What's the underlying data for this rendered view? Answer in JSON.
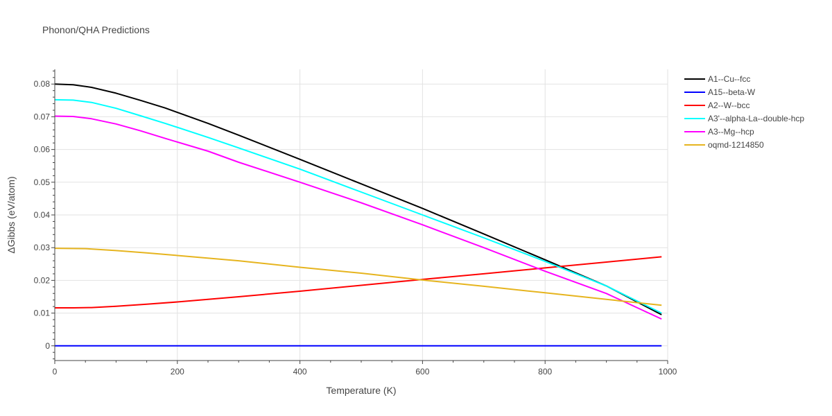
{
  "chart_data": {
    "type": "line",
    "title": "Phonon/QHA Predictions",
    "xlabel": "Temperature (K)",
    "ylabel": "ΔGibbs (eV/atom)",
    "xlim": [
      0,
      1000
    ],
    "ylim": [
      -0.0045,
      0.0845
    ],
    "x_ticks": [
      0,
      200,
      400,
      600,
      800,
      1000
    ],
    "x_tick_labels": [
      "0",
      "200",
      "400",
      "600",
      "800",
      "1000"
    ],
    "y_ticks": [
      0,
      0.01,
      0.02,
      0.03,
      0.04,
      0.05,
      0.06,
      0.07,
      0.08
    ],
    "y_tick_labels": [
      "0",
      "0.01",
      "0.02",
      "0.03",
      "0.04",
      "0.05",
      "0.06",
      "0.07",
      "0.08"
    ],
    "grid": true,
    "legend_position": "top-right outside",
    "series": [
      {
        "name": "A1--Cu--fcc",
        "color": "#000000",
        "x": [
          0,
          30,
          60,
          100,
          140,
          180,
          250,
          300,
          400,
          500,
          600,
          700,
          800,
          900,
          990
        ],
        "y": [
          0.08,
          0.0798,
          0.079,
          0.0772,
          0.075,
          0.0727,
          0.068,
          0.0644,
          0.057,
          0.0495,
          0.042,
          0.0342,
          0.0263,
          0.0183,
          0.0095
        ]
      },
      {
        "name": "A15--beta-W",
        "color": "#0000ff",
        "x": [
          0,
          990
        ],
        "y": [
          0.0,
          0.0
        ]
      },
      {
        "name": "A2--W--bcc",
        "color": "#ff0000",
        "x": [
          0,
          30,
          60,
          100,
          150,
          200,
          300,
          400,
          500,
          600,
          700,
          800,
          900,
          990
        ],
        "y": [
          0.0116,
          0.0116,
          0.0117,
          0.0121,
          0.0127,
          0.0134,
          0.015,
          0.0167,
          0.0185,
          0.0203,
          0.022,
          0.0238,
          0.0256,
          0.0272
        ]
      },
      {
        "name": "A3'--alpha-La--double-hcp",
        "color": "#00ffff",
        "x": [
          0,
          30,
          60,
          100,
          140,
          180,
          250,
          300,
          400,
          500,
          600,
          700,
          800,
          900,
          990
        ],
        "y": [
          0.0752,
          0.0751,
          0.0744,
          0.0726,
          0.0703,
          0.068,
          0.0637,
          0.0605,
          0.054,
          0.047,
          0.04,
          0.033,
          0.0258,
          0.0183,
          0.01
        ]
      },
      {
        "name": "A3--Mg--hcp",
        "color": "#ff00ff",
        "x": [
          0,
          30,
          60,
          100,
          140,
          180,
          250,
          300,
          400,
          500,
          600,
          700,
          800,
          900,
          990
        ],
        "y": [
          0.0702,
          0.0701,
          0.0694,
          0.0678,
          0.0657,
          0.0634,
          0.0595,
          0.0561,
          0.05,
          0.0437,
          0.037,
          0.03,
          0.0228,
          0.016,
          0.0082
        ]
      },
      {
        "name": "oqmd-1214850",
        "color": "#e6b41e",
        "x": [
          0,
          50,
          100,
          150,
          200,
          300,
          400,
          500,
          600,
          700,
          800,
          900,
          990
        ],
        "y": [
          0.0298,
          0.0297,
          0.0291,
          0.0284,
          0.0276,
          0.026,
          0.024,
          0.0222,
          0.0201,
          0.0182,
          0.0162,
          0.0142,
          0.0124
        ]
      }
    ]
  }
}
